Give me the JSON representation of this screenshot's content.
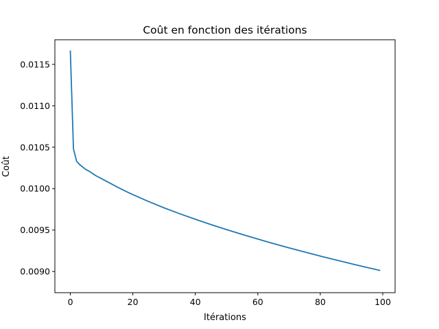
{
  "chart_data": {
    "type": "line",
    "title": "Coût en fonction des itérations",
    "xlabel": "Itérations",
    "ylabel": "Coût",
    "xlim": [
      -4.95,
      103.95
    ],
    "ylim": [
      0.008744,
      0.011797
    ],
    "x_ticks": [
      0,
      20,
      40,
      60,
      80,
      100
    ],
    "x_tick_labels": [
      "0",
      "20",
      "40",
      "60",
      "80",
      "100"
    ],
    "y_ticks": [
      0.009,
      0.0095,
      0.01,
      0.0105,
      0.011,
      0.0115
    ],
    "y_tick_labels": [
      "0.0090",
      "0.0095",
      "0.0100",
      "0.0105",
      "0.0110",
      "0.0115"
    ],
    "grid": false,
    "series": [
      {
        "color": "#1f77b4",
        "x": [
          0,
          1,
          2,
          3,
          4,
          5,
          6,
          8,
          10,
          12,
          15,
          18,
          20,
          25,
          30,
          35,
          40,
          45,
          50,
          55,
          60,
          65,
          70,
          75,
          80,
          85,
          90,
          95,
          99
        ],
        "y": [
          0.01166,
          0.01048,
          0.01033,
          0.01029,
          0.01026,
          0.01023,
          0.01021,
          0.01016,
          0.01012,
          0.01008,
          0.01002,
          0.009963,
          0.009928,
          0.009845,
          0.009768,
          0.009697,
          0.00963,
          0.009566,
          0.009505,
          0.009447,
          0.009391,
          0.009337,
          0.009285,
          0.009235,
          0.009186,
          0.009139,
          0.009093,
          0.009048,
          0.009014
        ]
      }
    ]
  }
}
